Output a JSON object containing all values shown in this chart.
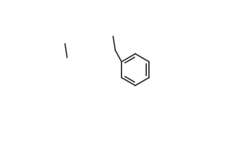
{
  "background_color": "#ffffff",
  "line_color": "#3a3a3a",
  "line_width": 1.4,
  "figsize": [
    3.38,
    2.36
  ],
  "dpi": 100,
  "xlim": [
    0,
    338
  ],
  "ylim": [
    0,
    236
  ]
}
